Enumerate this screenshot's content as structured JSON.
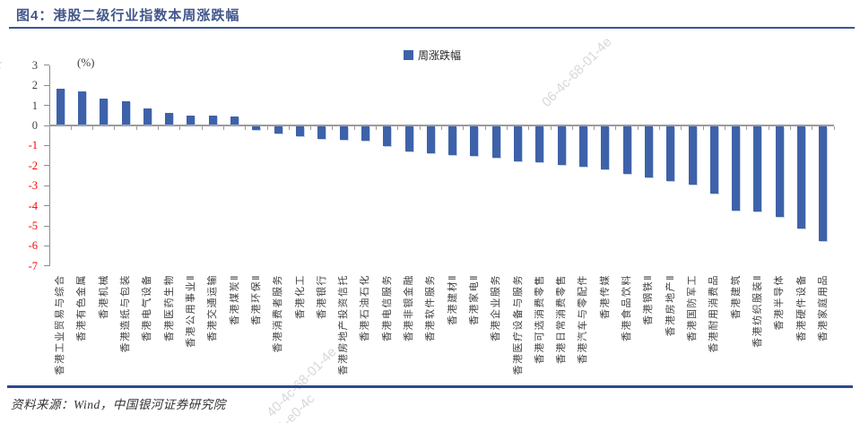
{
  "header": {
    "title": "图4：港股二级行业指数本周涨跌幅"
  },
  "chart_data": {
    "type": "bar",
    "title": "图4：港股二级行业指数本周涨跌幅",
    "unit_label": "(%)",
    "legend": [
      {
        "label": "周涨跌幅",
        "color": "#3E62A9"
      }
    ],
    "legend_position": "top-center",
    "ylim": [
      -7,
      3
    ],
    "yticks": [
      3,
      2,
      1,
      0,
      -1,
      -2,
      -3,
      -4,
      -5,
      -6,
      -7
    ],
    "grid": false,
    "bar_color": "#3E62A9",
    "positive_tick_label_color": "#3f3f3f",
    "negative_tick_label_color": "#FF0000",
    "xlabel": "",
    "ylabel": "(%)",
    "categories": [
      "香港工业贸易与综合",
      "香港有色金属",
      "香港机械",
      "香港造纸与包装",
      "香港电气设备",
      "香港医药生物",
      "香港公用事业Ⅱ",
      "香港交通运输",
      "香港煤炭Ⅱ",
      "香港环保Ⅱ",
      "香港消费者服务",
      "香港化工",
      "香港银行",
      "香港房地产投资信托",
      "香港石油石化",
      "香港电信服务",
      "香港非银金融",
      "香港软件服务",
      "香港建材Ⅱ",
      "香港家电Ⅱ",
      "香港企业服务",
      "香港医疗设备与服务",
      "香港可选消费零售",
      "香港日常消费零售",
      "香港汽车与零配件",
      "香港传媒",
      "香港食品饮料",
      "香港钢铁Ⅱ",
      "香港房地产Ⅱ",
      "香港国防军工",
      "香港耐用消费品",
      "香港建筑",
      "香港纺织服装Ⅱ",
      "香港半导体",
      "香港硬件设备",
      "香港家庭用品"
    ],
    "values": [
      1.8,
      1.65,
      1.3,
      1.15,
      0.8,
      0.6,
      0.45,
      0.46,
      0.43,
      -0.2,
      -0.37,
      -0.48,
      -0.62,
      -0.66,
      -0.72,
      -1.0,
      -1.25,
      -1.35,
      -1.42,
      -1.5,
      -1.58,
      -1.76,
      -1.79,
      -1.91,
      -2.01,
      -2.16,
      -2.36,
      -2.54,
      -2.72,
      -2.93,
      -3.38,
      -4.2,
      -4.27,
      -4.5,
      -5.12,
      -5.72
    ]
  },
  "footer": {
    "source": "资料来源：Wind，中国银河证券研究院"
  },
  "watermark": {
    "fragments": [
      "8-01-",
      "06-4c-68-01-4e",
      "40-4c-68-01-4e",
      "1-e0-4c"
    ]
  }
}
